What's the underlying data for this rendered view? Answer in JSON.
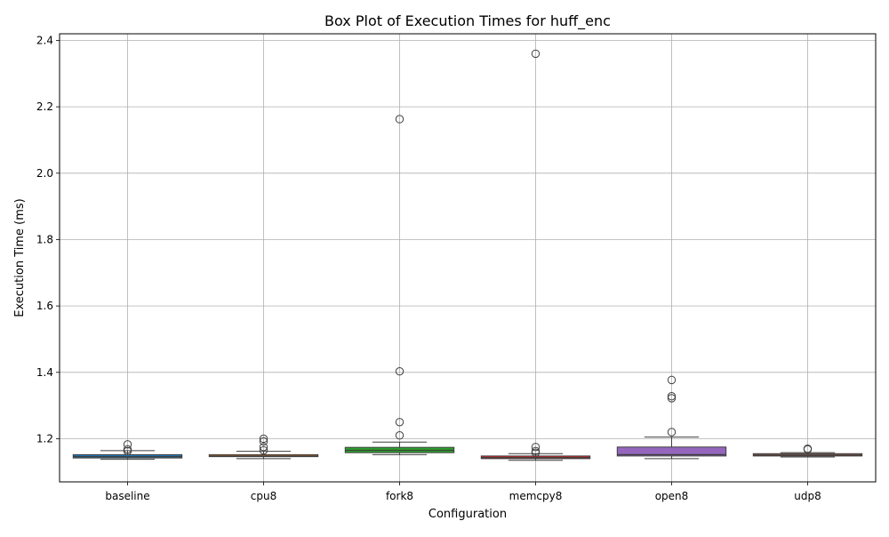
{
  "chart_data": {
    "type": "box",
    "title": "Box Plot of Execution Times for huff_enc",
    "xlabel": "Configuration",
    "ylabel": "Execution Time (ms)",
    "ylim": [
      1.07,
      2.42
    ],
    "yticks": [
      "1.2",
      "1.4",
      "1.6",
      "1.8",
      "2.0",
      "2.2",
      "2.4"
    ],
    "grid": true,
    "categories": [
      "baseline",
      "cpu8",
      "fork8",
      "memcpy8",
      "open8",
      "udp8"
    ],
    "series": [
      {
        "category": "baseline",
        "color": "#1f77b4",
        "whisker_low": 1.138,
        "q1": 1.142,
        "median": 1.146,
        "q3": 1.152,
        "whisker_high": 1.164,
        "outliers": [
          1.183,
          1.168,
          1.163
        ]
      },
      {
        "category": "cpu8",
        "color": "#ff7f0e",
        "whisker_low": 1.14,
        "q1": 1.146,
        "median": 1.148,
        "q3": 1.152,
        "whisker_high": 1.162,
        "outliers": [
          1.2,
          1.192,
          1.175,
          1.165
        ]
      },
      {
        "category": "fork8",
        "color": "#2ca02c",
        "whisker_low": 1.152,
        "q1": 1.158,
        "median": 1.165,
        "q3": 1.174,
        "whisker_high": 1.19,
        "outliers": [
          2.163,
          1.403,
          1.25,
          1.21
        ]
      },
      {
        "category": "memcpy8",
        "color": "#d62728",
        "whisker_low": 1.135,
        "q1": 1.14,
        "median": 1.143,
        "q3": 1.148,
        "whisker_high": 1.155,
        "outliers": [
          2.36,
          1.175,
          1.163,
          1.158
        ]
      },
      {
        "category": "open8",
        "color": "#9467bd",
        "whisker_low": 1.14,
        "q1": 1.148,
        "median": 1.152,
        "q3": 1.175,
        "whisker_high": 1.205,
        "outliers": [
          1.377,
          1.328,
          1.322,
          1.22
        ]
      },
      {
        "category": "udp8",
        "color": "#8c564b",
        "whisker_low": 1.145,
        "q1": 1.148,
        "median": 1.15,
        "q3": 1.155,
        "whisker_high": 1.158,
        "outliers": [
          1.17,
          1.168
        ]
      }
    ]
  }
}
